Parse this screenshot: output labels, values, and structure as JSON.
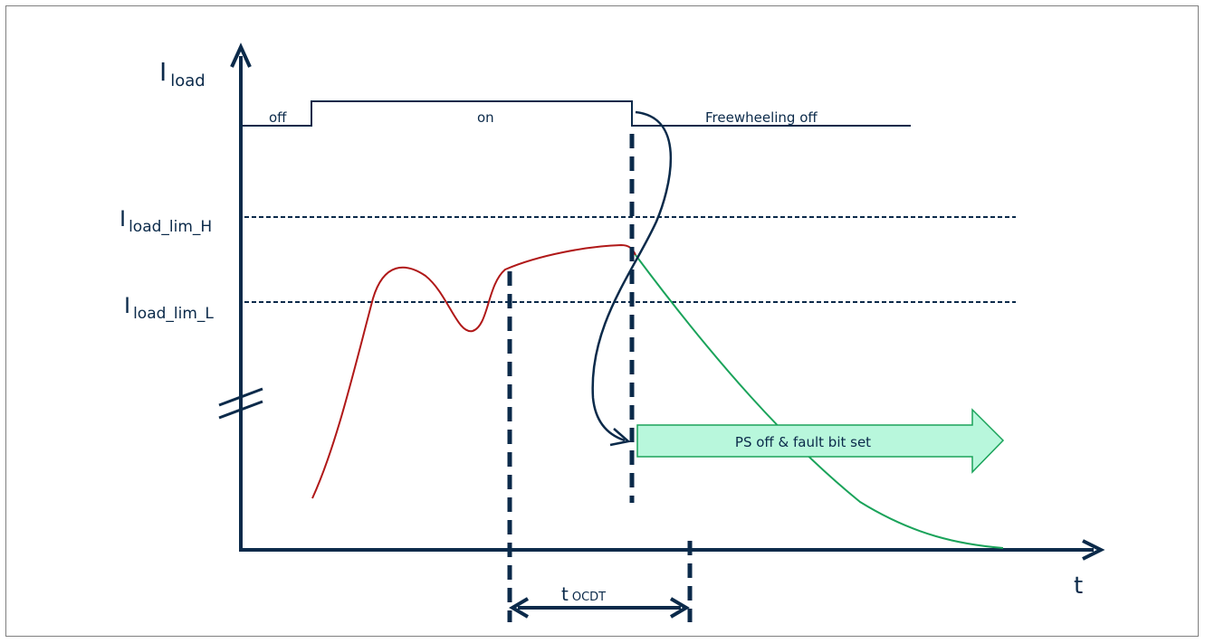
{
  "axes": {
    "y_main": "I",
    "y_sub": "load",
    "x": "t"
  },
  "levels": {
    "high_main": "I",
    "high_sub": "load_lim_H",
    "low_main": "I",
    "low_sub": "load_lim_L"
  },
  "state_labels": {
    "off": "off",
    "on": "on",
    "freewheeling": "Freewheeling off"
  },
  "timing": {
    "main": "t",
    "sub": "OCDT"
  },
  "action": {
    "label": "PS off & fault bit set"
  },
  "colors": {
    "axis": "#0b2a4a",
    "current_rise": "#b01818",
    "current_decay": "#1aa35a",
    "arrow_fill": "#b8f7dc",
    "arrow_stroke": "#1aa35a"
  }
}
